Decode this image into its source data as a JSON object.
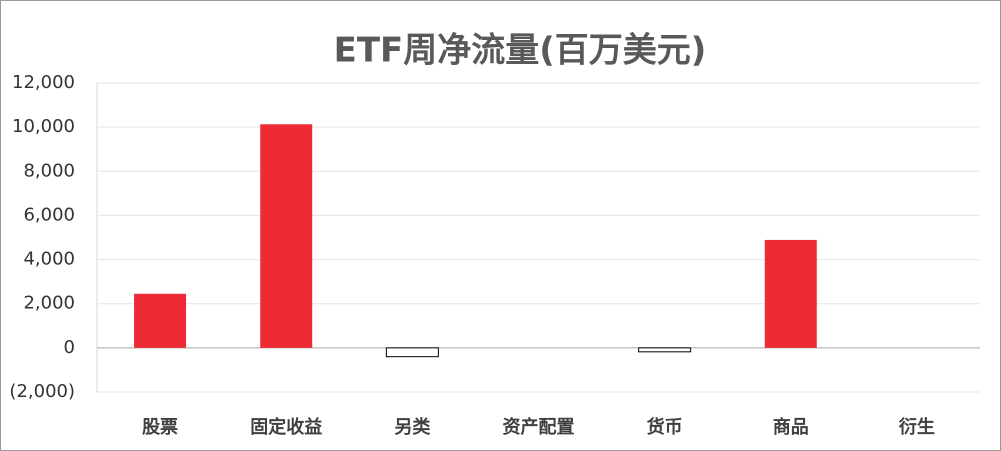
{
  "chart_data": {
    "type": "bar",
    "title": "ETF周净流量(百万美元)",
    "categories": [
      "股票",
      "固定收益",
      "另类",
      "资产配置",
      "货币",
      "商品",
      "衍生"
    ],
    "values": [
      2450,
      10130,
      -400,
      0,
      -180,
      4890,
      0
    ],
    "color": "#ee2a35",
    "negative_color": "#ffffff",
    "negative_tick_color": "#e00000",
    "ylim": [
      -2000,
      12000
    ],
    "yticks": [
      {
        "value": -2000,
        "label": "(2,000)"
      },
      0,
      {
        "value": 2000,
        "label": "2,000"
      },
      {
        "value": 4000,
        "label": "4,000"
      },
      {
        "value": 6000,
        "label": "6,000"
      },
      {
        "value": 8000,
        "label": "8,000"
      },
      {
        "value": 10000,
        "label": "10,000"
      },
      {
        "value": 12000,
        "label": "12,000"
      }
    ],
    "grid": true
  }
}
